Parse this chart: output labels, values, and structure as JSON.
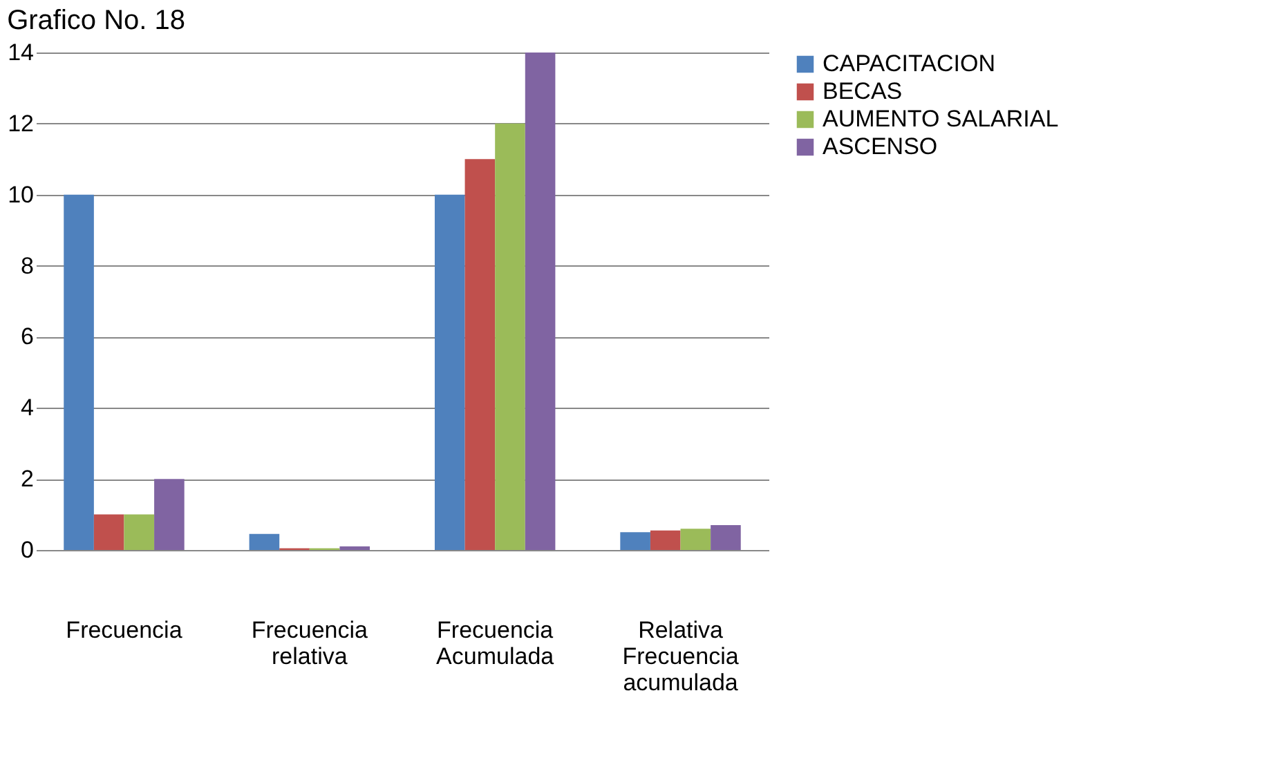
{
  "chart_data": {
    "type": "bar",
    "title": "Grafico No. 18",
    "categories": [
      "Frecuencia",
      "Frecuencia\nrelativa",
      "Frecuencia\nAcumulada",
      "Relativa\n\nFrecuencia\nacumulada"
    ],
    "series": [
      {
        "name": "CAPACITACION",
        "color": "#4f81bd",
        "values": [
          10,
          0.45,
          10,
          0.5
        ]
      },
      {
        "name": "BECAS",
        "color": "#c0504d",
        "values": [
          1,
          0.05,
          11,
          0.55
        ]
      },
      {
        "name": "AUMENTO SALARIAL",
        "color": "#9bbb59",
        "values": [
          1,
          0.05,
          12,
          0.6
        ]
      },
      {
        "name": "ASCENSO",
        "color": "#8064a2",
        "values": [
          2,
          0.1,
          14,
          0.7
        ]
      }
    ],
    "ylim": [
      0,
      14
    ],
    "yticks": [
      0,
      2,
      4,
      6,
      8,
      10,
      12,
      14
    ],
    "grid": "y",
    "legend": "right"
  }
}
